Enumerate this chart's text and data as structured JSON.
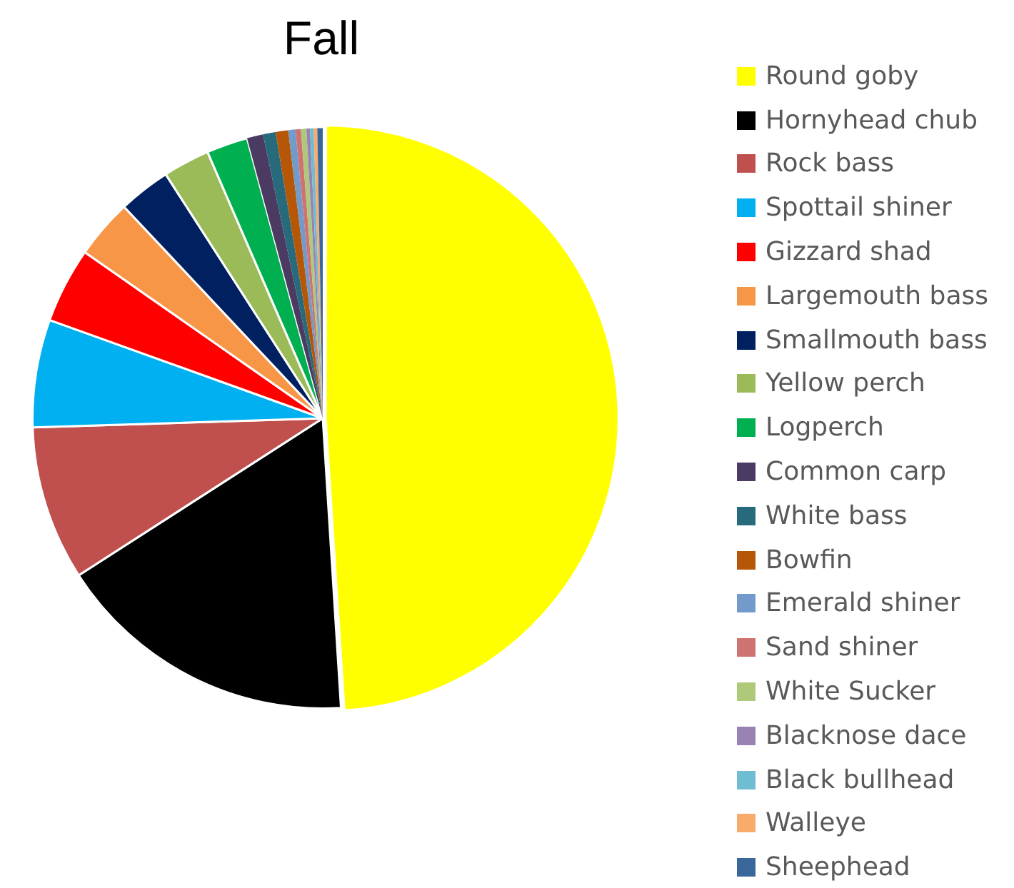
{
  "chart_data": {
    "type": "pie",
    "title": "Fall",
    "legend": "right",
    "categories": [
      "Round goby",
      "Hornyhead chub",
      "Rock bass",
      "Spottail shiner",
      "Gizzard shad",
      "Largemouth bass",
      "Smallmouth bass",
      "Yellow perch",
      "Logperch",
      "Common carp",
      "White bass",
      "Bowfin",
      "Emerald shiner",
      "Sand shiner",
      "White Sucker",
      "Blacknose dace",
      "Black bullhead",
      "Walleye",
      "Sheephead"
    ],
    "values": [
      49.0,
      16.9,
      8.6,
      6.0,
      4.2,
      3.3,
      2.9,
      2.6,
      2.3,
      0.9,
      0.7,
      0.7,
      0.4,
      0.3,
      0.3,
      0.2,
      0.2,
      0.2,
      0.3
    ],
    "colors": [
      "#ffff00",
      "#000000",
      "#c0504d",
      "#00b0f0",
      "#ff0000",
      "#f79646",
      "#002060",
      "#9bbb59",
      "#00b050",
      "#4b3a61",
      "#276a7c",
      "#b65708",
      "#729aca",
      "#ce7371",
      "#afc97a",
      "#9983b5",
      "#6fbdd1",
      "#f9ab6b",
      "#3a679b"
    ]
  }
}
